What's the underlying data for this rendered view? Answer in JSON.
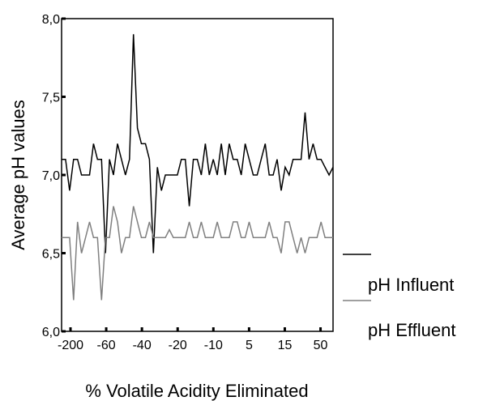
{
  "chart_data": {
    "type": "line",
    "xlabel": "% Volatile Acidity Eliminated",
    "ylabel": "Average pH values",
    "y_ticks": [
      "6,0",
      "6,5",
      "7,0",
      "7,5",
      "8,0"
    ],
    "y_tick_values": [
      6.0,
      6.5,
      7.0,
      7.5,
      8.0
    ],
    "ylim": [
      6.0,
      8.0
    ],
    "x_tick_labels": [
      "-200",
      "-60",
      "-40",
      "-20",
      "-10",
      "5",
      "15",
      "50"
    ],
    "legend_position": "right",
    "series": [
      {
        "name": "pH Influent",
        "color": "#000000",
        "values": [
          7.1,
          7.1,
          6.9,
          7.1,
          7.1,
          7.0,
          7.0,
          7.0,
          7.2,
          7.1,
          7.1,
          6.5,
          7.1,
          7.0,
          7.2,
          7.1,
          7.0,
          7.1,
          7.9,
          7.3,
          7.2,
          7.2,
          7.1,
          6.5,
          7.05,
          6.9,
          7.0,
          7.0,
          7.0,
          7.0,
          7.1,
          7.1,
          6.8,
          7.1,
          7.1,
          7.0,
          7.2,
          7.0,
          7.1,
          7.0,
          7.2,
          7.0,
          7.2,
          7.1,
          7.1,
          7.0,
          7.2,
          7.1,
          7.0,
          7.0,
          7.1,
          7.2,
          7.0,
          7.0,
          7.1,
          6.9,
          7.05,
          7.0,
          7.1,
          7.1,
          7.1,
          7.4,
          7.1,
          7.2,
          7.1,
          7.1,
          7.05,
          7.0,
          7.05
        ]
      },
      {
        "name": "pH Effluent",
        "color": "#808080",
        "values": [
          6.6,
          6.6,
          6.6,
          6.2,
          6.7,
          6.5,
          6.6,
          6.7,
          6.6,
          6.6,
          6.2,
          6.6,
          6.6,
          6.8,
          6.7,
          6.5,
          6.6,
          6.6,
          6.8,
          6.7,
          6.6,
          6.6,
          6.7,
          6.6,
          6.6,
          6.6,
          6.6,
          6.65,
          6.6,
          6.6,
          6.6,
          6.6,
          6.7,
          6.6,
          6.6,
          6.7,
          6.6,
          6.6,
          6.6,
          6.7,
          6.6,
          6.6,
          6.6,
          6.7,
          6.7,
          6.6,
          6.6,
          6.7,
          6.6,
          6.6,
          6.6,
          6.6,
          6.7,
          6.6,
          6.6,
          6.5,
          6.7,
          6.7,
          6.6,
          6.5,
          6.6,
          6.5,
          6.6,
          6.6,
          6.6,
          6.7,
          6.6,
          6.6,
          6.6
        ]
      }
    ]
  }
}
